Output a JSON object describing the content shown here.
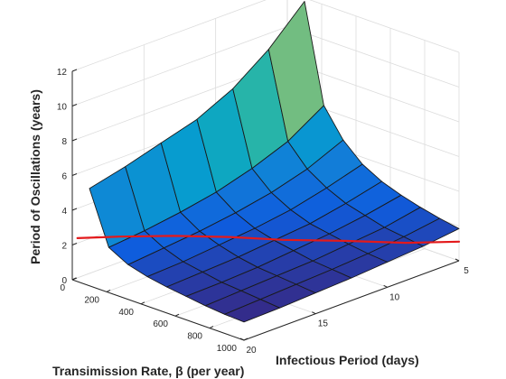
{
  "chart_data": {
    "type": "surface",
    "xlabel": "Transimission Rate, β (per year)",
    "ylabel": "Infectious Period (days)",
    "zlabel": "Period of Oscillations (years)",
    "x_ticks": [
      "0",
      "200",
      "400",
      "600",
      "800",
      "1000"
    ],
    "y_ticks": [
      "5",
      "10",
      "15",
      "20"
    ],
    "z_ticks": [
      "0",
      "2",
      "4",
      "6",
      "8",
      "10",
      "12"
    ],
    "xlim": [
      0,
      1000
    ],
    "ylim": [
      5,
      20
    ],
    "zlim": [
      0,
      12
    ],
    "grid": true,
    "colormap": "parula",
    "surface": {
      "beta": [
        100,
        212.5,
        325,
        437.5,
        550,
        662.5,
        775,
        887.5,
        1000
      ],
      "infectious_period_days": [
        5,
        7.5,
        10,
        12.5,
        15,
        17.5,
        20
      ],
      "period_years_by_beta": [
        [
          11.8,
          9.8,
          8.3,
          7.3,
          6.7,
          6.1,
          5.6
        ],
        [
          6.2,
          4.9,
          4.1,
          3.5,
          3.1,
          2.8,
          2.6
        ],
        [
          4.6,
          3.7,
          3.1,
          2.7,
          2.4,
          2.2,
          2.0
        ],
        [
          3.6,
          3.0,
          2.5,
          2.2,
          2.0,
          1.8,
          1.7
        ],
        [
          3.0,
          2.5,
          2.1,
          1.9,
          1.7,
          1.6,
          1.5
        ],
        [
          2.6,
          2.2,
          1.9,
          1.7,
          1.5,
          1.4,
          1.35
        ],
        [
          2.3,
          1.9,
          1.7,
          1.5,
          1.4,
          1.3,
          1.2
        ],
        [
          2.05,
          1.75,
          1.55,
          1.4,
          1.3,
          1.2,
          1.1
        ],
        [
          1.85,
          1.6,
          1.45,
          1.3,
          1.2,
          1.1,
          1.05
        ]
      ]
    },
    "curve": {
      "color": "#e31a1c",
      "beta": [
        30,
        150,
        300,
        450,
        600,
        750,
        900,
        1000
      ],
      "infectious_period_days": [
        20,
        18.5,
        16.5,
        14.5,
        12.5,
        10,
        7.5,
        5
      ],
      "period_years": [
        2.5,
        2.55,
        2.5,
        2.35,
        2.1,
        1.8,
        1.45,
        1.1
      ]
    }
  }
}
